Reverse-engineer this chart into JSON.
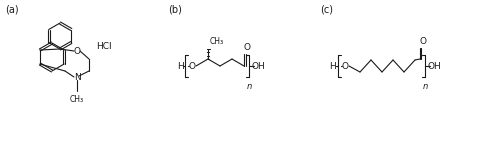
{
  "background_color": "#ffffff",
  "line_color": "#1a1a1a",
  "text_color": "#1a1a1a",
  "label_a": "(a)",
  "label_b": "(b)",
  "label_c": "(c)",
  "label_HCl": "HCl",
  "figsize": [
    5.0,
    1.54
  ],
  "dpi": 100
}
